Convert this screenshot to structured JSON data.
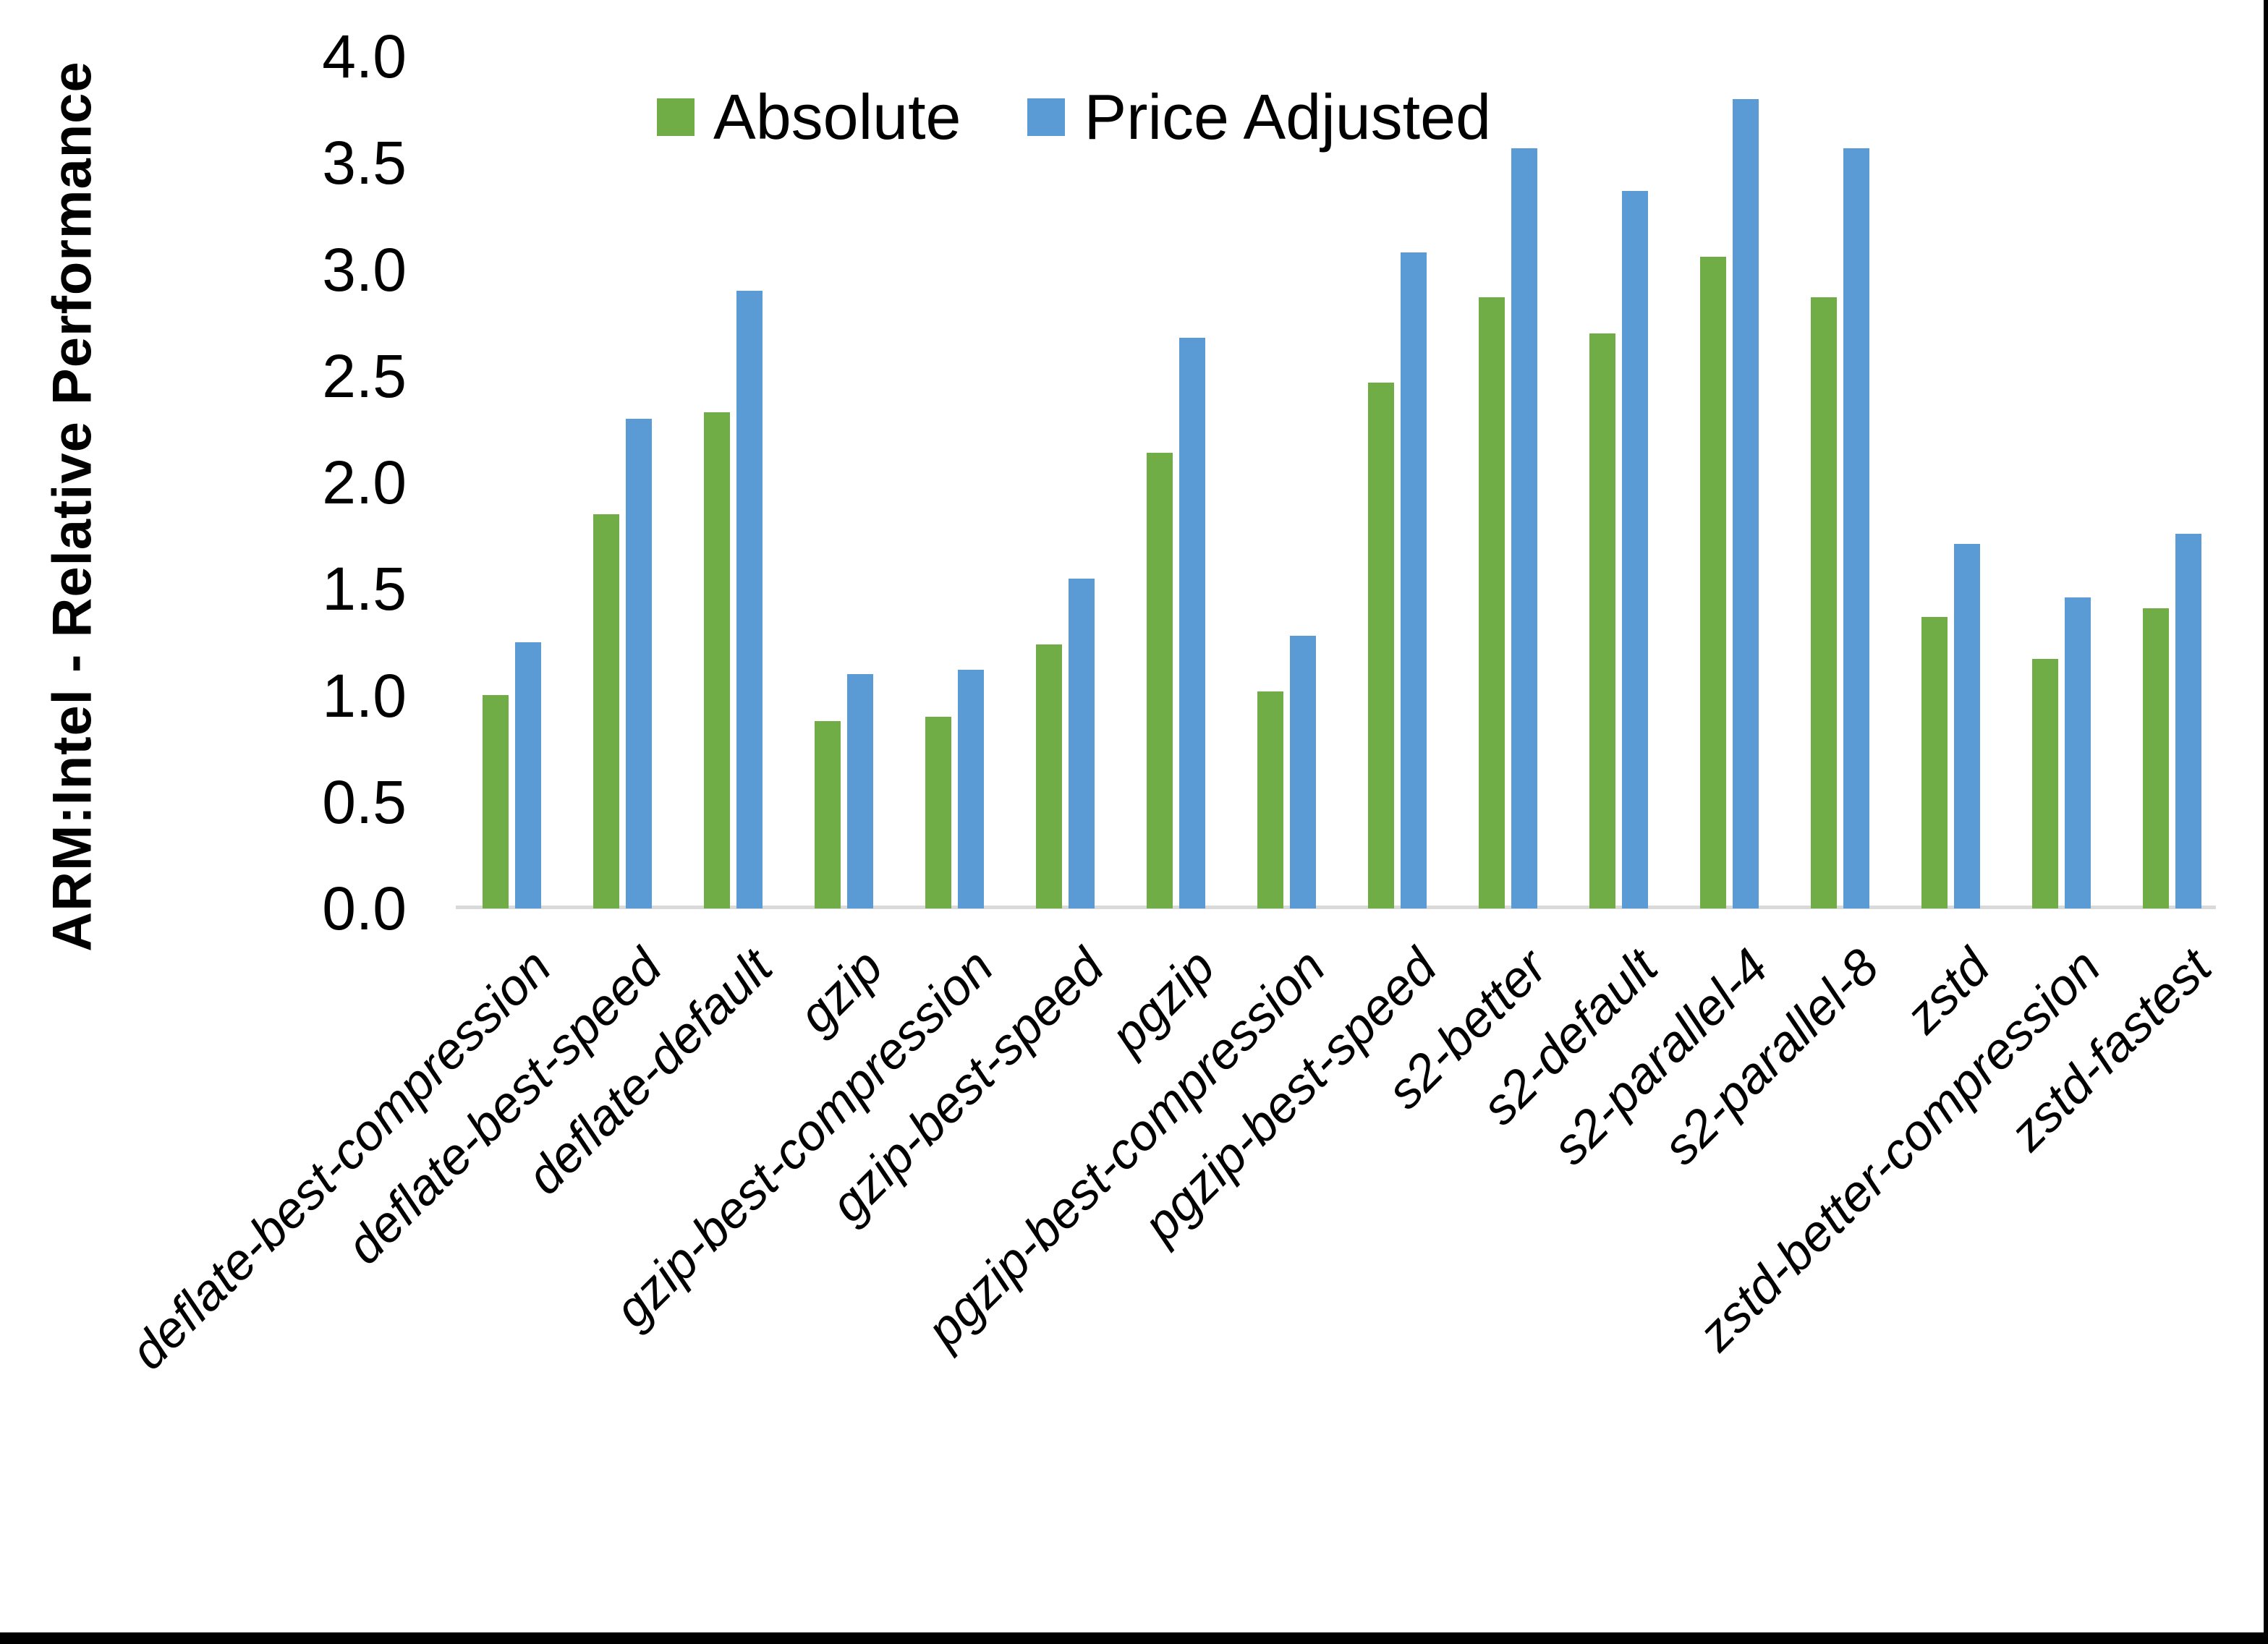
{
  "chart_data": {
    "type": "bar",
    "title": "",
    "ylabel": "ARM:Intel - Relative Performance",
    "xlabel": "",
    "ylim": [
      0.0,
      4.0
    ],
    "ytick_step": 0.5,
    "ytick_labels": [
      "0.0",
      "0.5",
      "1.0",
      "1.5",
      "2.0",
      "2.5",
      "3.0",
      "3.5",
      "4.0"
    ],
    "grid": false,
    "legend_position": "top-center",
    "categories": [
      "deflate-best-compression",
      "deflate-best-speed",
      "deflate-default",
      "gzip",
      "gzip-best-compression",
      "gzip-best-speed",
      "pgzip",
      "pgzip-best-compression",
      "pgzip-best-speed",
      "s2-better",
      "s2-default",
      "s2-parallel-4",
      "s2-parallel-8",
      "zstd",
      "zstd-better-compression",
      "zstd-fastest"
    ],
    "series": [
      {
        "name": "Absolute",
        "color": "#70AD47",
        "values": [
          1.0,
          1.85,
          2.33,
          0.88,
          0.9,
          1.24,
          2.14,
          1.02,
          2.47,
          2.87,
          2.7,
          3.06,
          2.87,
          1.37,
          1.17,
          1.41
        ]
      },
      {
        "name": "Price Adjusted",
        "color": "#5B9BD5",
        "values": [
          1.25,
          2.3,
          2.9,
          1.1,
          1.12,
          1.55,
          2.68,
          1.28,
          3.08,
          3.57,
          3.37,
          3.8,
          3.57,
          1.71,
          1.46,
          1.76
        ]
      }
    ]
  },
  "colors": {
    "background": "#FFFFFF",
    "axis_line": "#D9D9D9",
    "text": "#000000",
    "border_bars": "#000000"
  }
}
